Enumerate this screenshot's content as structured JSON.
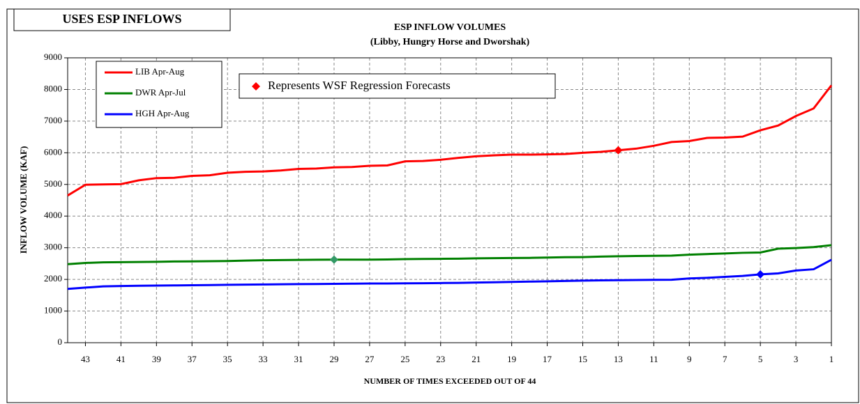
{
  "chart_data": {
    "type": "line",
    "header": "USES ESP INFLOWS",
    "title": "ESP INFLOW VOLUMES",
    "subtitle": "(Libby, Hungry Horse and Dworshak)",
    "x_label": "NUMBER OF TIMES EXCEEDED OUT OF 44",
    "y_label": "INFLOW VOLUME (KAF)",
    "annotation": "Represents WSF Regression Forecasts",
    "annotation_color": "#ff0000",
    "x": [
      44,
      43,
      42,
      41,
      40,
      39,
      38,
      37,
      36,
      35,
      34,
      33,
      32,
      31,
      30,
      29,
      28,
      27,
      26,
      25,
      24,
      23,
      22,
      21,
      20,
      19,
      18,
      17,
      16,
      15,
      14,
      13,
      12,
      11,
      10,
      9,
      8,
      7,
      6,
      5,
      4,
      3,
      2,
      1
    ],
    "series": [
      {
        "name": "LIB Apr-Aug",
        "color": "#ff0000",
        "marker_index": 31,
        "values": [
          4650,
          4990,
          5000,
          5010,
          5130,
          5200,
          5210,
          5270,
          5290,
          5370,
          5400,
          5410,
          5440,
          5490,
          5500,
          5540,
          5550,
          5590,
          5600,
          5730,
          5740,
          5780,
          5840,
          5890,
          5920,
          5940,
          5940,
          5950,
          5960,
          6000,
          6030,
          6080,
          6130,
          6220,
          6340,
          6370,
          6470,
          6480,
          6510,
          6710,
          6860,
          7160,
          7400,
          8130
        ]
      },
      {
        "name": "DWR Apr-Jul",
        "color": "#008000",
        "marker_color": "#339966",
        "marker_index": 15,
        "values": [
          2480,
          2520,
          2540,
          2545,
          2550,
          2555,
          2565,
          2570,
          2575,
          2580,
          2595,
          2605,
          2610,
          2615,
          2620,
          2625,
          2625,
          2625,
          2630,
          2640,
          2645,
          2650,
          2655,
          2665,
          2670,
          2675,
          2680,
          2690,
          2700,
          2705,
          2720,
          2730,
          2740,
          2745,
          2750,
          2780,
          2800,
          2820,
          2840,
          2850,
          2970,
          2990,
          3020,
          3080
        ]
      },
      {
        "name": "HGH Apr-Aug",
        "color": "#0000ff",
        "marker_index": 39,
        "values": [
          1700,
          1740,
          1780,
          1790,
          1800,
          1805,
          1810,
          1815,
          1820,
          1830,
          1835,
          1840,
          1845,
          1850,
          1855,
          1860,
          1865,
          1870,
          1870,
          1875,
          1880,
          1885,
          1890,
          1900,
          1910,
          1920,
          1930,
          1940,
          1950,
          1960,
          1970,
          1975,
          1980,
          1985,
          1990,
          2030,
          2050,
          2080,
          2110,
          2160,
          2190,
          2280,
          2320,
          2620
        ]
      }
    ],
    "xlim": [
      44,
      1
    ],
    "xticks": [
      43,
      41,
      39,
      37,
      35,
      33,
      31,
      29,
      27,
      25,
      23,
      21,
      19,
      17,
      15,
      13,
      11,
      9,
      7,
      5,
      3,
      1
    ],
    "ylim": [
      0,
      9000
    ],
    "yticks": [
      0,
      1000,
      2000,
      3000,
      4000,
      5000,
      6000,
      7000,
      8000,
      9000
    ],
    "grid": true
  }
}
